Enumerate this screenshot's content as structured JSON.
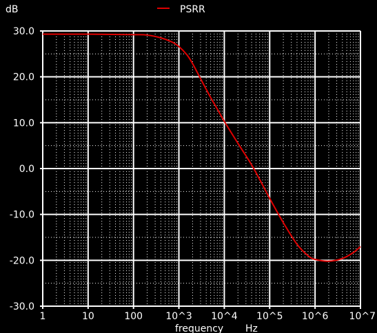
{
  "chart_data": {
    "type": "line",
    "title": "",
    "ylabel": "dB",
    "xlabel": "frequency",
    "xunit": "Hz",
    "xscale": "log",
    "xlim": [
      1,
      10000000
    ],
    "ylim": [
      -30,
      30
    ],
    "grid": true,
    "background": "#000000",
    "grid_color": "#ffffff",
    "x_ticks": [
      {
        "value": 1,
        "label": "1"
      },
      {
        "value": 10,
        "label": "10"
      },
      {
        "value": 100,
        "label": "100"
      },
      {
        "value": 1000,
        "label": "10^3"
      },
      {
        "value": 10000,
        "label": "10^4"
      },
      {
        "value": 100000,
        "label": "10^5"
      },
      {
        "value": 1000000,
        "label": "10^6"
      },
      {
        "value": 10000000,
        "label": "10^7"
      }
    ],
    "y_ticks": [
      {
        "value": 30,
        "label": "30.0"
      },
      {
        "value": 20,
        "label": "20.0"
      },
      {
        "value": 10,
        "label": "10.0"
      },
      {
        "value": 0,
        "label": "0.0"
      },
      {
        "value": -10,
        "label": "-10.0"
      },
      {
        "value": -20,
        "label": "-20.0"
      },
      {
        "value": -30,
        "label": "-30.0"
      }
    ],
    "legend": {
      "position": "top-center"
    },
    "series": [
      {
        "name": "PSRR",
        "color": "#e00000",
        "points": [
          [
            1,
            29.3
          ],
          [
            10,
            29.3
          ],
          [
            100,
            29.2
          ],
          [
            200,
            29.1
          ],
          [
            400,
            28.5
          ],
          [
            700,
            27.6
          ],
          [
            1000,
            26.6
          ],
          [
            1500,
            24.8
          ],
          [
            2000,
            22.9
          ],
          [
            3000,
            19.6
          ],
          [
            5000,
            15.5
          ],
          [
            7000,
            13.0
          ],
          [
            10000,
            10.3
          ],
          [
            20000,
            5.5
          ],
          [
            40000,
            0.8
          ],
          [
            70000,
            -3.6
          ],
          [
            100000,
            -6.5
          ],
          [
            200000,
            -11.8
          ],
          [
            400000,
            -16.5
          ],
          [
            700000,
            -19.0
          ],
          [
            1000000,
            -19.8
          ],
          [
            2000000,
            -20.2
          ],
          [
            4000000,
            -19.6
          ],
          [
            7000000,
            -18.3
          ],
          [
            10000000,
            -17.0
          ]
        ]
      }
    ]
  }
}
